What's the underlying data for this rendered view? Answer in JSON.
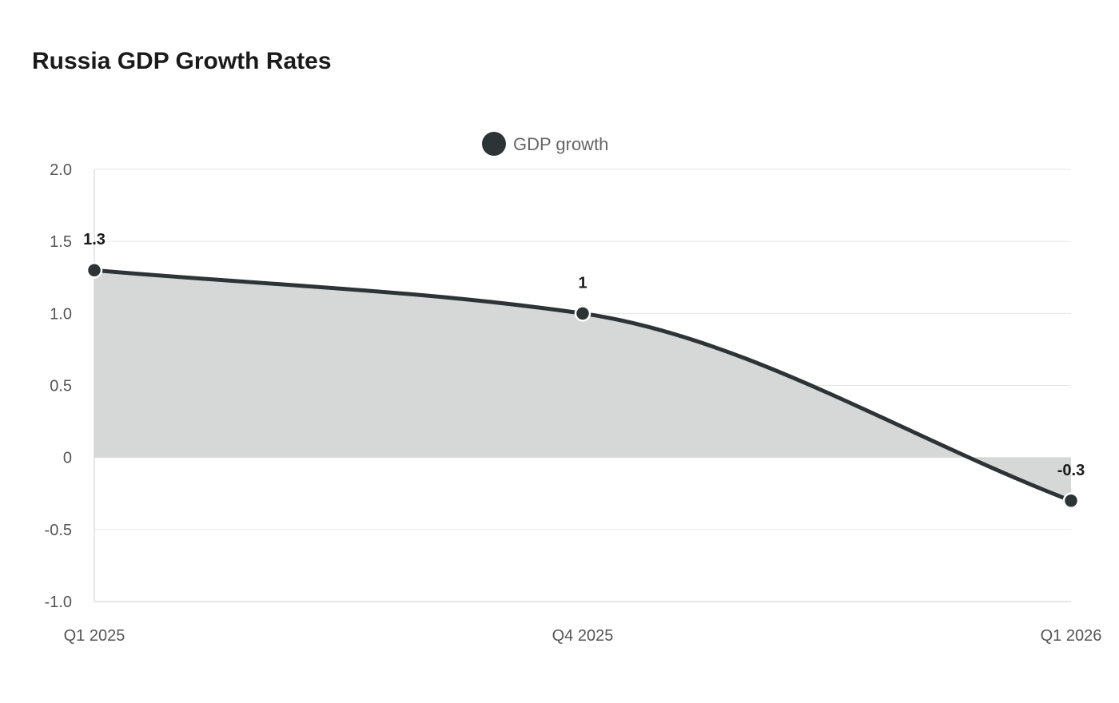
{
  "chart_data": {
    "type": "area",
    "title": "Russia GDP Growth Rates",
    "categories": [
      "Q1 2025",
      "Q4 2025",
      "Q1 2026"
    ],
    "series": [
      {
        "name": "GDP growth",
        "values": [
          1.3,
          1.0,
          -0.3
        ],
        "data_labels": [
          "1.3",
          "1",
          "-0.3"
        ]
      }
    ],
    "y_ticks": [
      2.0,
      1.5,
      1.0,
      0.5,
      0,
      -0.5,
      -1.0
    ],
    "y_tick_labels": [
      "2.0",
      "1.5",
      "1.0",
      "0.5",
      "0",
      "-0.5",
      "-1.0"
    ],
    "ylim": [
      -1.0,
      2.0
    ],
    "xlabel": "",
    "ylabel": "",
    "grid": true,
    "legend": "top-center",
    "colors": {
      "line": "#2d3436",
      "fill": "#d5d8d7",
      "grid": "#e6e6e6",
      "axis": "#cccccc",
      "marker_stroke": "#ffffff"
    }
  }
}
